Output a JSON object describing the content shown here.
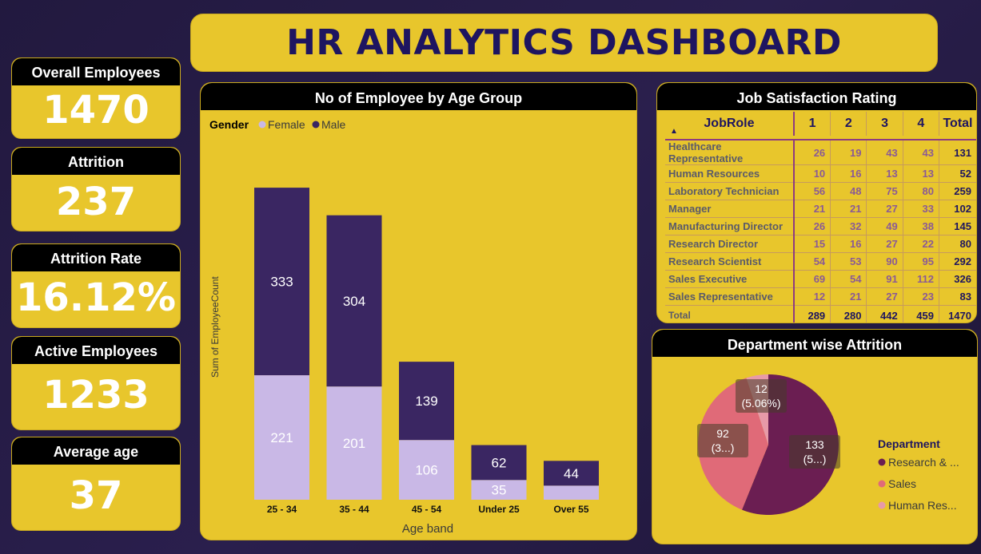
{
  "dashboard_title": "HR ANALYTICS DASHBOARD",
  "kpis": [
    {
      "label": "Overall Employees",
      "value": "1470"
    },
    {
      "label": "Attrition",
      "value": "237"
    },
    {
      "label": "Attrition Rate",
      "value": "16.12%"
    },
    {
      "label": "Active Employees",
      "value": "1233"
    },
    {
      "label": "Average age",
      "value": "37"
    }
  ],
  "colors": {
    "panel": "#e8c62c",
    "female": "#c9b8e6",
    "male": "#3a2662",
    "title_text": "#1e1560",
    "research": "#6b1e52",
    "sales": "#e06a78",
    "hr": "#e79aa8"
  },
  "chart_data": [
    {
      "type": "bar",
      "stacked": true,
      "title": "No of Employee by Age Group",
      "legend_title": "Gender",
      "legend_position": "top-left",
      "categories": [
        "25 - 34",
        "35 - 44",
        "45 - 54",
        "Under 25",
        "Over 55"
      ],
      "series": [
        {
          "name": "Female",
          "values": [
            221,
            201,
            106,
            35,
            25
          ]
        },
        {
          "name": "Male",
          "values": [
            333,
            304,
            139,
            62,
            44
          ]
        }
      ],
      "data_labels": {
        "Female": [
          "221",
          "201",
          "106",
          "35",
          ""
        ],
        "Male": [
          "333",
          "304",
          "139",
          "62",
          "44"
        ]
      },
      "xlabel": "Age band",
      "ylabel": "Sum of EmployeeCount",
      "ylim": [
        0,
        600
      ],
      "grid": false
    },
    {
      "type": "table",
      "title": "Job Satisfaction Rating",
      "columns": [
        "JobRole",
        "1",
        "2",
        "3",
        "4",
        "Total"
      ],
      "rows": [
        [
          "Healthcare Representative",
          "26",
          "19",
          "43",
          "43",
          "131"
        ],
        [
          "Human Resources",
          "10",
          "16",
          "13",
          "13",
          "52"
        ],
        [
          "Laboratory Technician",
          "56",
          "48",
          "75",
          "80",
          "259"
        ],
        [
          "Manager",
          "21",
          "21",
          "27",
          "33",
          "102"
        ],
        [
          "Manufacturing Director",
          "26",
          "32",
          "49",
          "38",
          "145"
        ],
        [
          "Research Director",
          "15",
          "16",
          "27",
          "22",
          "80"
        ],
        [
          "Research Scientist",
          "54",
          "53",
          "90",
          "95",
          "292"
        ],
        [
          "Sales Executive",
          "69",
          "54",
          "91",
          "112",
          "326"
        ],
        [
          "Sales Representative",
          "12",
          "21",
          "27",
          "23",
          "83"
        ]
      ],
      "total_row": [
        "Total",
        "289",
        "280",
        "442",
        "459",
        "1470"
      ]
    },
    {
      "type": "pie",
      "title": "Department wise Attrition",
      "legend_title": "Department",
      "legend_position": "right",
      "slices": [
        {
          "name": "Research & Development",
          "legend_label": "Research & ...",
          "value": 133,
          "label_value": "133",
          "label_pct": "(5...)"
        },
        {
          "name": "Sales",
          "legend_label": "Sales",
          "value": 92,
          "label_value": "92",
          "label_pct": "(3...)"
        },
        {
          "name": "Human Resources",
          "legend_label": "Human Res...",
          "value": 12,
          "label_value": "12",
          "label_pct": "(5.06%)"
        }
      ]
    }
  ]
}
